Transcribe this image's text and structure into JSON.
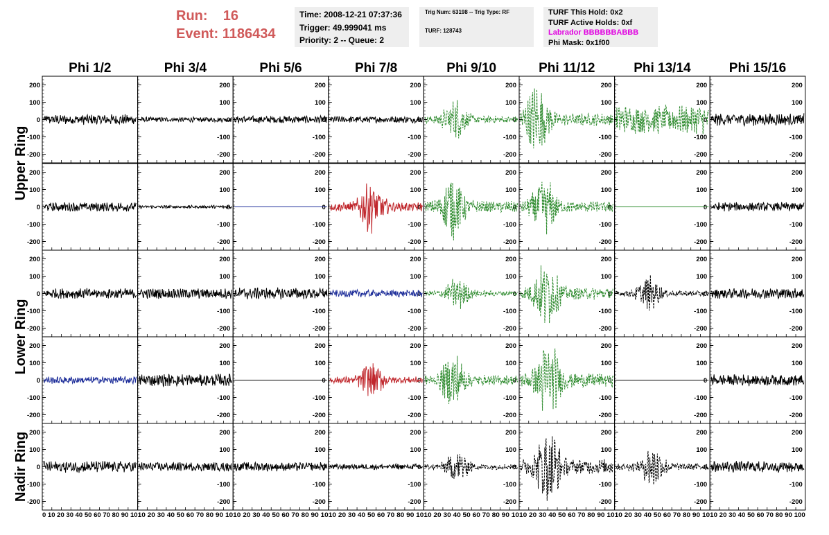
{
  "header": {
    "run_label": "Run:",
    "run_value": "16",
    "event_label": "Event:",
    "event_value": "1186434"
  },
  "info_time": {
    "time": "Time: 2008-12-21 07:37:36",
    "trigger": "Trigger: 49.999041 ms",
    "priority": "Priority: 2 -- Queue: 2"
  },
  "info_trig": {
    "trig": "Trig Num: 63198 -- Trig Type: RF",
    "turf": "TURF: 128743"
  },
  "info_turf": {
    "hold": "TURF This Hold: 0x2",
    "active": "TURF Active Holds: 0xf",
    "labrador": "Labrador BBBBBBABBB",
    "mask": "Phi Mask: 0x1f00"
  },
  "chart_data": {
    "type": "line",
    "columns": [
      "Phi 1/2",
      "Phi 3/4",
      "Phi 5/6",
      "Phi 7/8",
      "Phi 9/10",
      "Phi 11/12",
      "Phi 13/14",
      "Phi 15/16"
    ],
    "ring_labels": [
      "Upper Ring",
      "Lower Ring",
      "Nadir Ring"
    ],
    "rows_per_ring": [
      2,
      2,
      1
    ],
    "ylim": [
      -250,
      250
    ],
    "y_ticks": [
      -200,
      -100,
      0,
      100,
      200
    ],
    "xlim": [
      0,
      100
    ],
    "x_ticks": [
      0,
      10,
      20,
      30,
      40,
      50,
      60,
      70,
      80,
      90,
      100
    ],
    "x_tick_labels": [
      "0 10 20 30 40 50 60 70 80 90 10",
      "10 20 30 40 50 60 70 80 90 10",
      "10 20 30 40 50 60 70 80 90 10",
      "10 20 30 40 50 60 70 80 90 10",
      "10 20 30 40 50 60 70 80 90 10",
      "10 20 30 40 50 60 70 80 90 10",
      "10 20 30 40 50 60 70 80 90 10",
      "10 20 30 40 50 60 70 80 90 100"
    ],
    "colors": {
      "black": "#000000",
      "green": "#2e8b2e",
      "red": "#c0282d",
      "blue": "#1f2f9a"
    },
    "panels": [
      [
        {
          "color": "black",
          "dash": false,
          "amp": 25,
          "center": null,
          "flat": false
        },
        {
          "color": "black",
          "dash": false,
          "amp": 12,
          "center": null,
          "flat": false
        },
        {
          "color": "black",
          "dash": false,
          "amp": 18,
          "center": null,
          "flat": false
        },
        {
          "color": "black",
          "dash": false,
          "amp": 16,
          "center": null,
          "flat": false
        },
        {
          "color": "green",
          "dash": true,
          "amp": 90,
          "center": 32,
          "flat": false
        },
        {
          "color": "green",
          "dash": true,
          "amp": 150,
          "center": 18,
          "flat": false
        },
        {
          "color": "green",
          "dash": true,
          "amp": 70,
          "center": null,
          "flat": false
        },
        {
          "color": "black",
          "dash": false,
          "amp": 30,
          "center": null,
          "flat": false
        }
      ],
      [
        {
          "color": "black",
          "dash": false,
          "amp": 22,
          "center": null,
          "flat": false
        },
        {
          "color": "black",
          "dash": false,
          "amp": 8,
          "center": null,
          "flat": false
        },
        {
          "color": "blue",
          "dash": false,
          "amp": 0,
          "center": null,
          "flat": true
        },
        {
          "color": "red",
          "dash": false,
          "amp": 110,
          "center": 45,
          "flat": false
        },
        {
          "color": "green",
          "dash": true,
          "amp": 140,
          "center": 30,
          "flat": false
        },
        {
          "color": "green",
          "dash": true,
          "amp": 130,
          "center": 25,
          "flat": false
        },
        {
          "color": "green",
          "dash": false,
          "amp": 0,
          "center": null,
          "flat": true
        },
        {
          "color": "black",
          "dash": false,
          "amp": 22,
          "center": null,
          "flat": false
        }
      ],
      [
        {
          "color": "black",
          "dash": false,
          "amp": 25,
          "center": null,
          "flat": false
        },
        {
          "color": "black",
          "dash": false,
          "amp": 25,
          "center": null,
          "flat": false
        },
        {
          "color": "black",
          "dash": false,
          "amp": 28,
          "center": null,
          "flat": false
        },
        {
          "color": "blue",
          "dash": false,
          "amp": 18,
          "center": null,
          "flat": false
        },
        {
          "color": "green",
          "dash": true,
          "amp": 70,
          "center": 35,
          "flat": false
        },
        {
          "color": "green",
          "dash": true,
          "amp": 150,
          "center": 28,
          "flat": false
        },
        {
          "color": "black",
          "dash": true,
          "amp": 75,
          "center": 35,
          "flat": false
        },
        {
          "color": "black",
          "dash": false,
          "amp": 25,
          "center": null,
          "flat": false
        }
      ],
      [
        {
          "color": "blue",
          "dash": false,
          "amp": 18,
          "center": null,
          "flat": false
        },
        {
          "color": "black",
          "dash": false,
          "amp": 30,
          "center": null,
          "flat": false
        },
        {
          "color": "black",
          "dash": false,
          "amp": 0,
          "center": null,
          "flat": true
        },
        {
          "color": "red",
          "dash": false,
          "amp": 80,
          "center": 45,
          "flat": false
        },
        {
          "color": "green",
          "dash": true,
          "amp": 120,
          "center": 30,
          "flat": false
        },
        {
          "color": "green",
          "dash": true,
          "amp": 170,
          "center": 30,
          "flat": false
        },
        {
          "color": "black",
          "dash": false,
          "amp": 0,
          "center": null,
          "flat": true
        },
        {
          "color": "black",
          "dash": false,
          "amp": 28,
          "center": null,
          "flat": false
        }
      ],
      [
        {
          "color": "black",
          "dash": false,
          "amp": 28,
          "center": null,
          "flat": false
        },
        {
          "color": "black",
          "dash": false,
          "amp": 22,
          "center": null,
          "flat": false
        },
        {
          "color": "black",
          "dash": false,
          "amp": 22,
          "center": null,
          "flat": false
        },
        {
          "color": "black",
          "dash": false,
          "amp": 14,
          "center": null,
          "flat": false
        },
        {
          "color": "black",
          "dash": true,
          "amp": 70,
          "center": 35,
          "flat": false
        },
        {
          "color": "black",
          "dash": true,
          "amp": 180,
          "center": 30,
          "flat": false
        },
        {
          "color": "black",
          "dash": true,
          "amp": 90,
          "center": 40,
          "flat": false
        },
        {
          "color": "black",
          "dash": false,
          "amp": 28,
          "center": null,
          "flat": false
        }
      ]
    ]
  }
}
